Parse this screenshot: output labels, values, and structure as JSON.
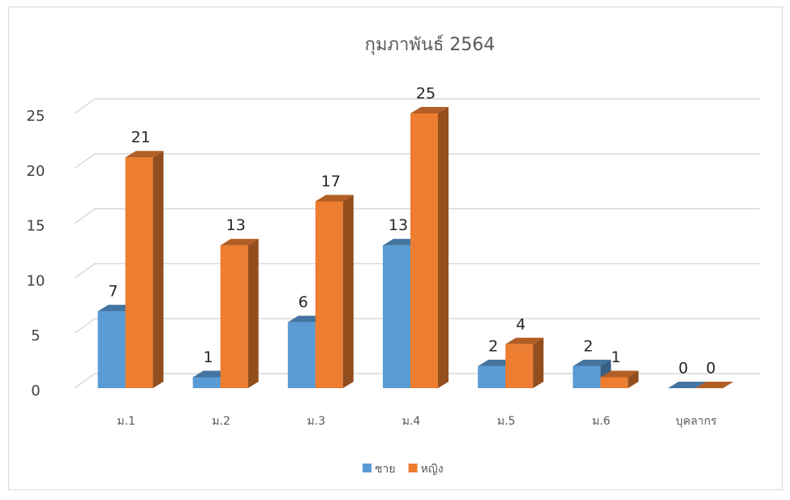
{
  "chart_data": {
    "type": "bar3d",
    "title": "กุมภาพันธ์ 2564",
    "categories": [
      "ม.1",
      "ม.2",
      "ม.3",
      "ม.4",
      "ม.5",
      "ม.6",
      "บุคลากร"
    ],
    "series": [
      {
        "name": "ชาย",
        "color": "#5b9bd5",
        "values": [
          7,
          1,
          6,
          13,
          2,
          2,
          0
        ]
      },
      {
        "name": "หญิง",
        "color": "#ed7d31",
        "values": [
          21,
          13,
          17,
          25,
          4,
          1,
          0
        ]
      }
    ],
    "ylim": [
      0,
      25
    ],
    "yticks": [
      0,
      5,
      10,
      15,
      20,
      25
    ],
    "grid": true,
    "legend": "bottom"
  }
}
